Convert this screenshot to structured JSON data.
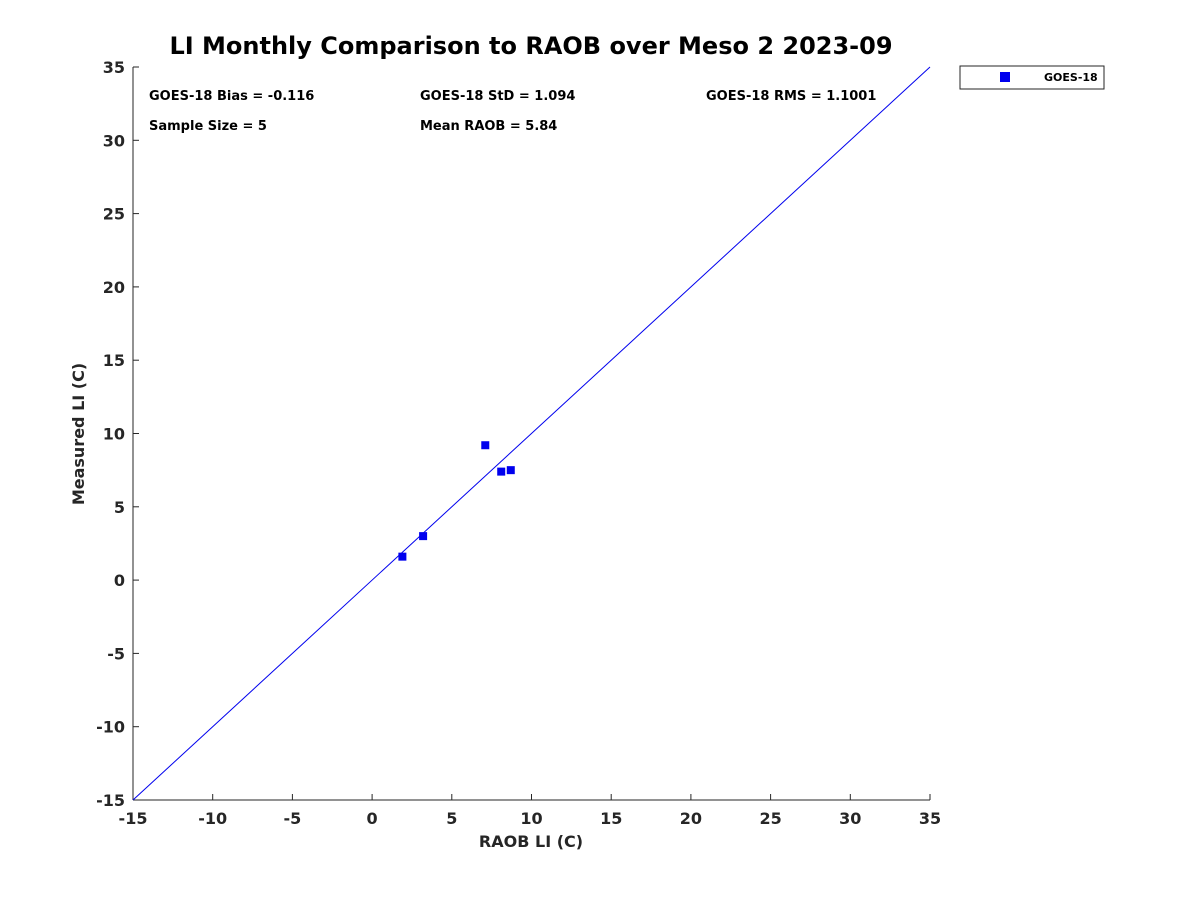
{
  "chart_data": {
    "type": "scatter",
    "title": "LI Monthly Comparison to RAOB over Meso 2 2023-09",
    "xlabel": "RAOB LI (C)",
    "ylabel": "Measured LI (C)",
    "xlim": [
      -15,
      35
    ],
    "ylim": [
      -15,
      35
    ],
    "xticks": [
      -15,
      -10,
      -5,
      0,
      5,
      10,
      15,
      20,
      25,
      30,
      35
    ],
    "yticks": [
      -15,
      -10,
      -5,
      0,
      5,
      10,
      15,
      20,
      25,
      30,
      35
    ],
    "grid": false,
    "legend_position": "outside-top-right",
    "series": [
      {
        "name": "GOES-18",
        "color": "#0000ee",
        "marker": "square",
        "points": [
          {
            "x": 1.9,
            "y": 1.6
          },
          {
            "x": 3.2,
            "y": 3.0
          },
          {
            "x": 7.1,
            "y": 9.2
          },
          {
            "x": 8.1,
            "y": 7.4
          },
          {
            "x": 8.7,
            "y": 7.5
          }
        ]
      }
    ],
    "reference_line": {
      "name": "one-to-one line",
      "from": [
        -15,
        -15
      ],
      "to": [
        35,
        35
      ],
      "color": "#0000ee"
    },
    "stats": {
      "bias": "GOES-18 Bias = -0.116",
      "std": "GOES-18 StD = 1.094",
      "rms": "GOES-18 RMS = 1.1001",
      "sample_size": "Sample Size = 5",
      "mean_raob": "Mean RAOB = 5.84"
    }
  }
}
